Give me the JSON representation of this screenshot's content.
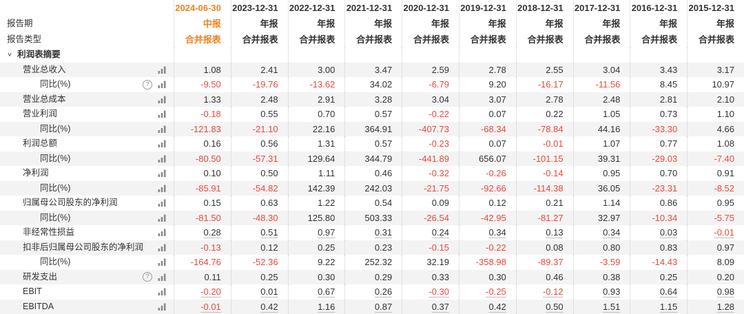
{
  "colors": {
    "accent_orange": "#f0821e",
    "negative_red": "#e84a3c",
    "text": "#333333",
    "stripe_gray": "#f3f3f3",
    "dotted_border": "#cccccc",
    "icon_gray": "#8a8a8a"
  },
  "table": {
    "header": {
      "period_label": "报告期",
      "type_label": "报告类型"
    },
    "section": {
      "chevron": "∨",
      "label": "利润表摘要"
    },
    "icon_glyphs": {
      "help": "?"
    },
    "columns": [
      {
        "date": "2024-06-30",
        "period": "中报",
        "type": "合并报表",
        "current": true
      },
      {
        "date": "2023-12-31",
        "period": "年报",
        "type": "合并报表",
        "current": false
      },
      {
        "date": "2022-12-31",
        "period": "年报",
        "type": "合并报表",
        "current": false
      },
      {
        "date": "2021-12-31",
        "period": "年报",
        "type": "合并报表",
        "current": false
      },
      {
        "date": "2020-12-31",
        "period": "年报",
        "type": "合并报表",
        "current": false
      },
      {
        "date": "2019-12-31",
        "period": "年报",
        "type": "合并报表",
        "current": false
      },
      {
        "date": "2018-12-31",
        "period": "年报",
        "type": "合并报表",
        "current": false
      },
      {
        "date": "2017-12-31",
        "period": "年报",
        "type": "合并报表",
        "current": false
      },
      {
        "date": "2016-12-31",
        "period": "年报",
        "type": "合并报表",
        "current": false
      },
      {
        "date": "2015-12-31",
        "period": "年报",
        "type": "合并报表",
        "current": false
      }
    ],
    "rows": [
      {
        "label": "营业总收入",
        "indent": 1,
        "icons": [
          "bar-chart-icon"
        ],
        "underline": false,
        "values": [
          "1.08",
          "2.41",
          "3.00",
          "3.47",
          "2.59",
          "2.78",
          "2.55",
          "3.04",
          "3.43",
          "3.17"
        ]
      },
      {
        "label": "同比(%)",
        "indent": 2,
        "icons": [
          "help-icon",
          "bar-chart-icon"
        ],
        "underline": false,
        "values": [
          "-9.50",
          "-19.76",
          "-13.62",
          "34.02",
          "-6.79",
          "9.20",
          "-16.17",
          "-11.56",
          "8.45",
          "10.97"
        ]
      },
      {
        "label": "营业总成本",
        "indent": 1,
        "icons": [
          "bar-chart-icon"
        ],
        "underline": false,
        "values": [
          "1.33",
          "2.48",
          "2.91",
          "3.28",
          "3.04",
          "3.07",
          "2.78",
          "2.48",
          "2.81",
          "2.10"
        ]
      },
      {
        "label": "营业利润",
        "indent": 1,
        "icons": [
          "bar-chart-icon"
        ],
        "underline": false,
        "values": [
          "-0.18",
          "0.55",
          "0.70",
          "0.57",
          "-0.22",
          "0.07",
          "0.22",
          "1.05",
          "0.73",
          "1.10"
        ]
      },
      {
        "label": "同比(%)",
        "indent": 2,
        "icons": [
          "bar-chart-icon"
        ],
        "underline": false,
        "values": [
          "-121.83",
          "-21.10",
          "22.16",
          "364.91",
          "-407.73",
          "-68.34",
          "-78.84",
          "44.16",
          "-33.30",
          "4.66"
        ]
      },
      {
        "label": "利润总额",
        "indent": 1,
        "icons": [
          "bar-chart-icon"
        ],
        "underline": false,
        "values": [
          "0.16",
          "0.56",
          "1.31",
          "0.57",
          "-0.23",
          "0.07",
          "-0.01",
          "1.07",
          "0.77",
          "1.08"
        ]
      },
      {
        "label": "同比(%)",
        "indent": 2,
        "icons": [
          "bar-chart-icon"
        ],
        "underline": false,
        "values": [
          "-80.50",
          "-57.31",
          "129.64",
          "344.79",
          "-441.89",
          "656.07",
          "-101.15",
          "39.31",
          "-29.03",
          "-7.40"
        ]
      },
      {
        "label": "净利润",
        "indent": 1,
        "icons": [
          "bar-chart-icon"
        ],
        "underline": false,
        "values": [
          "0.10",
          "0.50",
          "1.11",
          "0.46",
          "-0.32",
          "-0.26",
          "-0.14",
          "0.95",
          "0.70",
          "0.91"
        ]
      },
      {
        "label": "同比(%)",
        "indent": 2,
        "icons": [
          "bar-chart-icon"
        ],
        "underline": false,
        "values": [
          "-85.91",
          "-54.82",
          "142.39",
          "242.03",
          "-21.75",
          "-92.66",
          "-114.38",
          "36.05",
          "-23.31",
          "-8.52"
        ]
      },
      {
        "label": "归属母公司股东的净利润",
        "indent": 1,
        "icons": [
          "bar-chart-icon"
        ],
        "underline": false,
        "values": [
          "0.15",
          "0.63",
          "1.22",
          "0.54",
          "0.09",
          "0.12",
          "0.21",
          "1.14",
          "0.86",
          "0.95"
        ]
      },
      {
        "label": "同比(%)",
        "indent": 2,
        "icons": [
          "bar-chart-icon"
        ],
        "underline": false,
        "values": [
          "-81.50",
          "-48.30",
          "125.80",
          "503.33",
          "-26.54",
          "-42.95",
          "-81.27",
          "32.97",
          "-10.34",
          "-5.75"
        ]
      },
      {
        "label": "非经常性损益",
        "indent": 1,
        "icons": [
          "bar-chart-icon"
        ],
        "underline": true,
        "values": [
          "0.28",
          "0.51",
          "0.97",
          "0.31",
          "0.24",
          "0.34",
          "0.13",
          "0.34",
          "0.03",
          "-0.01"
        ]
      },
      {
        "label": "扣非后归属母公司股东的净利润",
        "indent": 1,
        "icons": [
          "bar-chart-icon"
        ],
        "underline": false,
        "values": [
          "-0.13",
          "0.12",
          "0.25",
          "0.23",
          "-0.15",
          "-0.22",
          "0.08",
          "0.80",
          "0.83",
          "0.97"
        ]
      },
      {
        "label": "同比(%)",
        "indent": 2,
        "icons": [
          "bar-chart-icon"
        ],
        "underline": false,
        "values": [
          "-164.76",
          "-52.36",
          "9.22",
          "252.32",
          "32.19",
          "-358.98",
          "-89.37",
          "-3.59",
          "-14.43",
          "8.09"
        ]
      },
      {
        "label": "研发支出",
        "indent": 1,
        "icons": [
          "help-icon",
          "bar-chart-icon"
        ],
        "underline": false,
        "values": [
          "0.11",
          "0.25",
          "0.30",
          "0.29",
          "0.33",
          "0.30",
          "0.46",
          "0.38",
          "0.25",
          "0.20"
        ]
      },
      {
        "label": "EBIT",
        "indent": 1,
        "icons": [
          "bar-chart-icon"
        ],
        "underline": true,
        "values": [
          "-0.20",
          "0.01",
          "0.67",
          "0.26",
          "-0.30",
          "-0.25",
          "-0.12",
          "0.93",
          "0.64",
          "0.98"
        ]
      },
      {
        "label": "EBITDA",
        "indent": 1,
        "icons": [
          "bar-chart-icon"
        ],
        "underline": true,
        "values": [
          "-0.01",
          "0.42",
          "1.16",
          "0.87",
          "0.37",
          "0.42",
          "0.50",
          "1.51",
          "1.15",
          "1.28"
        ]
      }
    ]
  }
}
